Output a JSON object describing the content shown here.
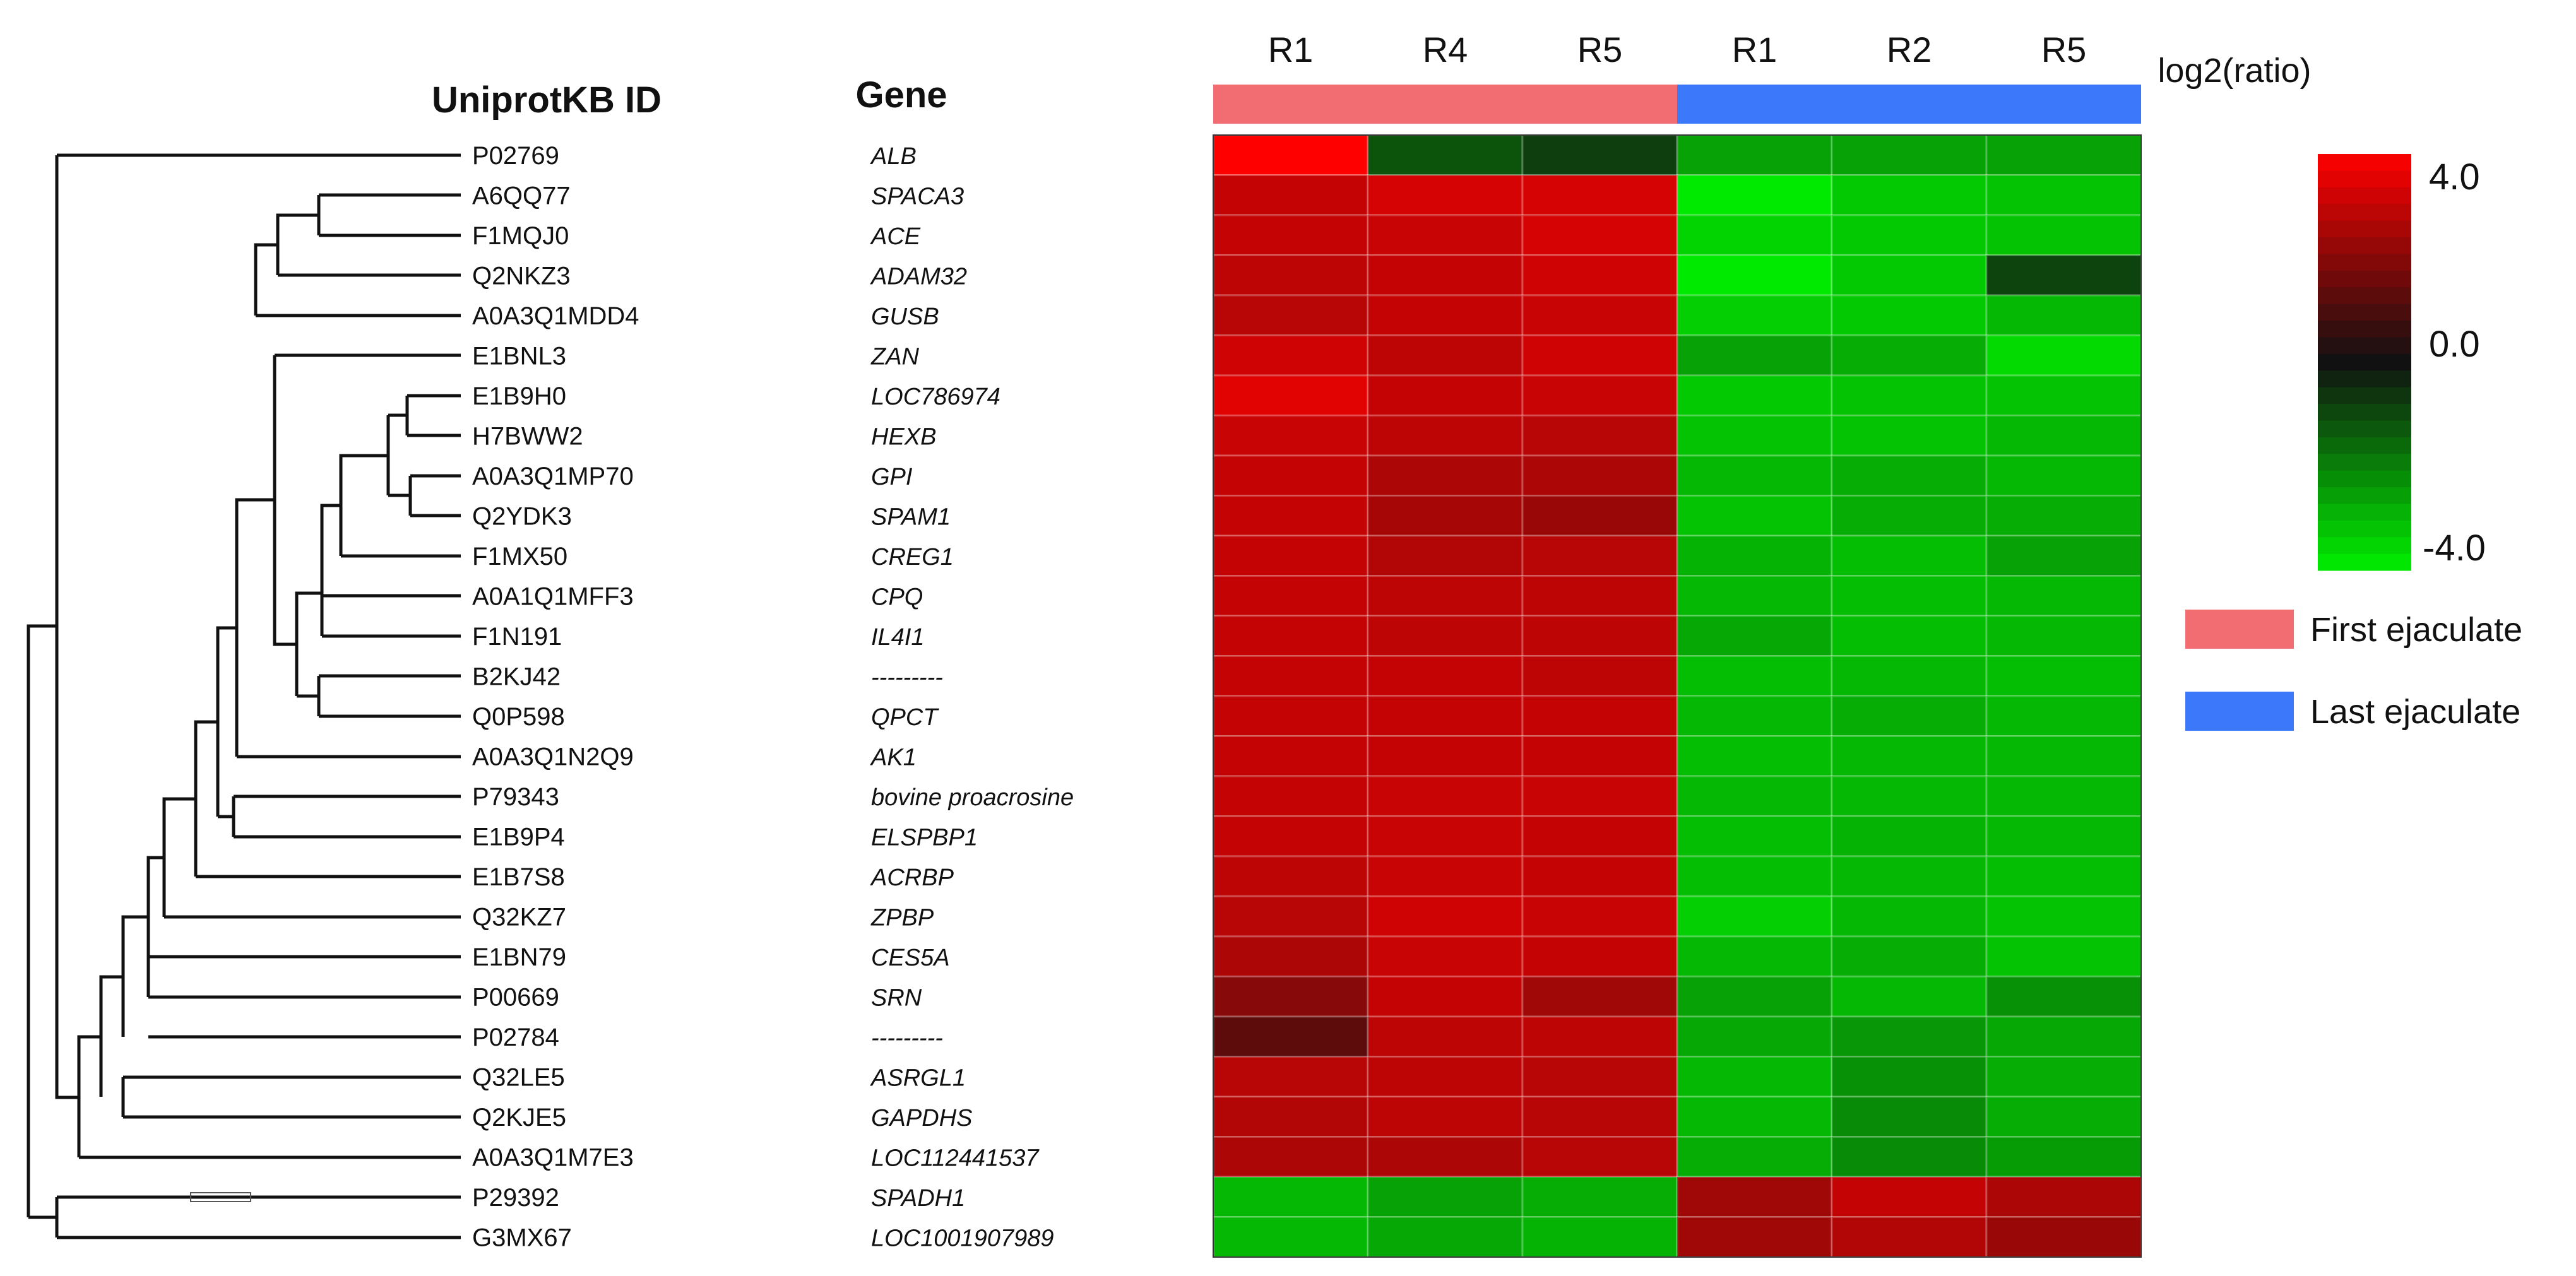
{
  "headers": {
    "id": "UniprotKB ID",
    "gene": "Gene"
  },
  "legend": {
    "title": "log2(ratio)",
    "max_label": "4.0",
    "mid_label": "0.0",
    "min_label": "-4.0",
    "groups": [
      {
        "label": "First ejaculate",
        "color": "#f26d72"
      },
      {
        "label": "Last ejaculate",
        "color": "#3b78fa"
      }
    ]
  },
  "chart_data": {
    "type": "heatmap",
    "title": "",
    "xlabel": "",
    "ylabel": "",
    "value_range": [
      -4.0,
      4.0
    ],
    "colormap": {
      "low": "#00f000",
      "mid": "#111111",
      "high": "#ff0000"
    },
    "columns": [
      {
        "label": "R1",
        "group": "First ejaculate"
      },
      {
        "label": "R4",
        "group": "First ejaculate"
      },
      {
        "label": "R5",
        "group": "First ejaculate"
      },
      {
        "label": "R1",
        "group": "Last ejaculate"
      },
      {
        "label": "R2",
        "group": "Last ejaculate"
      },
      {
        "label": "R5",
        "group": "Last ejaculate"
      }
    ],
    "rows": [
      {
        "id": "P02769",
        "gene": "ALB",
        "values": [
          4.0,
          -1.2,
          -0.8,
          -2.6,
          -2.6,
          -2.6
        ]
      },
      {
        "id": "A6QQ77",
        "gene": "SPACA3",
        "values": [
          3.0,
          3.3,
          3.3,
          -3.9,
          -3.3,
          -3.2
        ]
      },
      {
        "id": "F1MQJ0",
        "gene": "ACE",
        "values": [
          3.0,
          3.1,
          3.3,
          -3.5,
          -3.3,
          -3.2
        ]
      },
      {
        "id": "Q2NKZ3",
        "gene": "ADAM32",
        "values": [
          2.9,
          3.0,
          3.2,
          -3.9,
          -3.3,
          -0.9
        ]
      },
      {
        "id": "A0A3Q1MDD4",
        "gene": "GUSB",
        "values": [
          2.8,
          3.0,
          3.1,
          -3.4,
          -3.3,
          -3.0
        ]
      },
      {
        "id": "E1BNL3",
        "gene": "ZAN",
        "values": [
          3.2,
          2.9,
          3.2,
          -2.6,
          -2.8,
          -3.6
        ]
      },
      {
        "id": "E1B9H0",
        "gene": "LOC786974",
        "values": [
          3.5,
          3.0,
          3.1,
          -3.3,
          -3.2,
          -3.2
        ]
      },
      {
        "id": "H7BWW2",
        "gene": "HEXB",
        "values": [
          3.1,
          2.9,
          2.8,
          -3.2,
          -3.2,
          -3.0
        ]
      },
      {
        "id": "A0A3Q1MP70",
        "gene": "GPI",
        "values": [
          3.0,
          2.6,
          2.6,
          -3.0,
          -2.8,
          -3.0
        ]
      },
      {
        "id": "Q2YDK3",
        "gene": "SPAM1",
        "values": [
          3.0,
          2.5,
          2.3,
          -3.2,
          -2.8,
          -2.8
        ]
      },
      {
        "id": "F1MX50",
        "gene": "CREG1",
        "values": [
          3.0,
          2.7,
          2.8,
          -2.9,
          -3.1,
          -2.6
        ]
      },
      {
        "id": "A0A1Q1MFF3",
        "gene": "CPQ",
        "values": [
          3.0,
          2.9,
          2.9,
          -3.0,
          -3.1,
          -3.0
        ]
      },
      {
        "id": "F1N191",
        "gene": "IL4I1",
        "values": [
          3.0,
          2.9,
          2.9,
          -2.7,
          -3.1,
          -3.0
        ]
      },
      {
        "id": "B2KJ42",
        "gene": "---------",
        "values": [
          3.0,
          3.0,
          2.9,
          -3.1,
          -3.0,
          -3.1
        ]
      },
      {
        "id": "Q0P598",
        "gene": "QPCT",
        "values": [
          3.0,
          3.0,
          3.0,
          -3.0,
          -2.8,
          -3.0
        ]
      },
      {
        "id": "A0A3Q1N2Q9",
        "gene": "AK1",
        "values": [
          3.0,
          3.0,
          3.0,
          -3.1,
          -3.0,
          -3.0
        ]
      },
      {
        "id": "P79343",
        "gene": "bovine proacrosine",
        "values": [
          3.0,
          3.1,
          3.1,
          -3.0,
          -3.0,
          -3.0
        ]
      },
      {
        "id": "E1B9P4",
        "gene": "ELSPBP1",
        "values": [
          3.0,
          3.1,
          3.0,
          -3.1,
          -2.9,
          -3.0
        ]
      },
      {
        "id": "E1B7S8",
        "gene": "ACRBP",
        "values": [
          2.9,
          3.1,
          3.0,
          -3.1,
          -3.0,
          -3.1
        ]
      },
      {
        "id": "Q32KZ7",
        "gene": "ZPBP",
        "values": [
          2.8,
          3.2,
          3.1,
          -3.4,
          -3.0,
          -3.2
        ]
      },
      {
        "id": "E1BN79",
        "gene": "CES5A",
        "values": [
          2.6,
          3.1,
          3.0,
          -3.0,
          -2.8,
          -3.2
        ]
      },
      {
        "id": "P00669",
        "gene": "SRN",
        "values": [
          2.0,
          3.0,
          2.4,
          -2.6,
          -3.0,
          -2.3
        ]
      },
      {
        "id": "P02784",
        "gene": "---------",
        "values": [
          1.3,
          2.9,
          2.9,
          -2.7,
          -2.4,
          -2.7
        ]
      },
      {
        "id": "Q32LE5",
        "gene": "ASRGL1",
        "values": [
          2.8,
          2.9,
          2.8,
          -3.0,
          -2.3,
          -2.8
        ]
      },
      {
        "id": "Q2KJE5",
        "gene": "GAPDHS",
        "values": [
          2.7,
          2.9,
          2.8,
          -3.0,
          -2.2,
          -2.8
        ]
      },
      {
        "id": "A0A3Q1M7E3",
        "gene": "LOC112441537",
        "values": [
          2.6,
          2.6,
          2.8,
          -2.8,
          -2.2,
          -2.5
        ]
      },
      {
        "id": "P29392",
        "gene": "SPADH1",
        "values": [
          -3.0,
          -2.6,
          -2.8,
          2.4,
          3.0,
          2.6
        ]
      },
      {
        "id": "G3MX67",
        "gene": "LOC1001907989",
        "values": [
          -3.0,
          -2.7,
          -2.9,
          2.4,
          2.7,
          2.3
        ]
      }
    ]
  }
}
